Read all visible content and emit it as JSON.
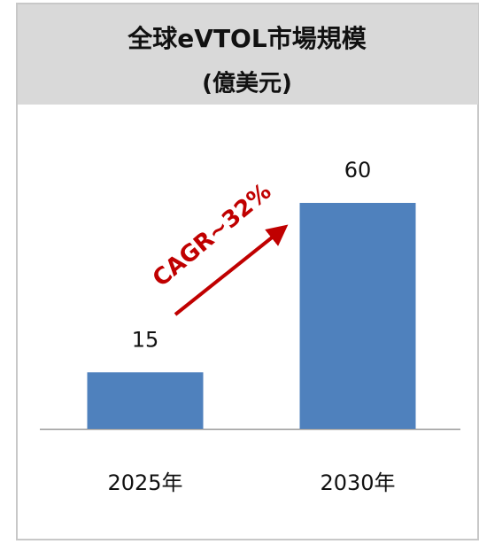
{
  "chart_data": {
    "type": "bar",
    "title": "全球eVTOL市場規模",
    "subtitle": "(億美元)",
    "categories": [
      "2025年",
      "2030年"
    ],
    "values": [
      15,
      60
    ],
    "color": "#4f81bd",
    "annotation": "CAGR~32%"
  }
}
